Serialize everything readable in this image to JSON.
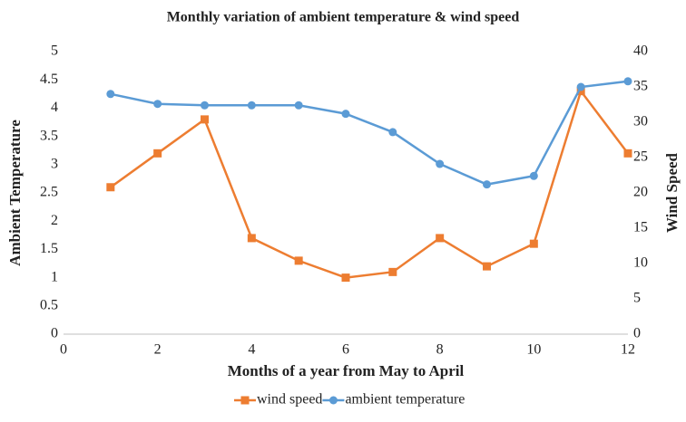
{
  "chart_data": {
    "type": "line",
    "title": "Monthly variation of ambient temperature & wind speed",
    "xlabel": "Months of a year from May to April",
    "ylabel": "Ambient Temperature",
    "y2label": "Wind Speed",
    "x": [
      1,
      2,
      3,
      4,
      5,
      6,
      7,
      8,
      9,
      10,
      11,
      12
    ],
    "series": [
      {
        "name": "wind speed",
        "color": "#ed7d31",
        "marker": "square",
        "values": [
          2.6,
          3.2,
          3.8,
          1.7,
          1.3,
          1.0,
          1.1,
          1.7,
          1.2,
          1.6,
          4.3,
          3.2
        ]
      },
      {
        "name": "ambient temperature",
        "color": "#5b9bd5",
        "marker": "circle",
        "axis": "y2",
        "values": [
          34.0,
          32.6,
          32.4,
          32.4,
          32.4,
          31.2,
          28.6,
          24.1,
          21.2,
          22.4,
          35.0,
          35.8
        ]
      }
    ],
    "xlim": [
      0,
      12
    ],
    "xticks": [
      0,
      2,
      4,
      6,
      8,
      10,
      12
    ],
    "ylim": [
      0,
      5
    ],
    "yticks": [
      0,
      0.5,
      1,
      1.5,
      2,
      2.5,
      3,
      3.5,
      4,
      4.5,
      5
    ],
    "y2lim": [
      0,
      40
    ],
    "y2ticks": [
      0,
      5,
      10,
      15,
      20,
      25,
      30,
      35,
      40
    ],
    "legend": "bottom"
  }
}
